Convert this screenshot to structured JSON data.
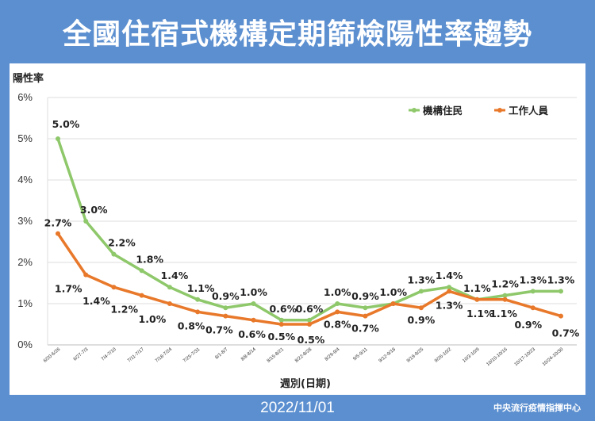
{
  "header": {
    "title": "全國住宿式機構定期篩檢陽性率趨勢"
  },
  "footer": {
    "date": "2022/11/01",
    "source": "中央流行疫情指揮中心"
  },
  "colors": {
    "background": "#5b8fd0",
    "series_residents": "#8ec86a",
    "series_staff": "#e8782a"
  },
  "chart_data": {
    "type": "line",
    "title": "",
    "ylabel": "陽性率",
    "xlabel": "週別(日期)",
    "ylim": [
      0,
      6
    ],
    "yticks": [
      "0%",
      "1%",
      "2%",
      "3%",
      "4%",
      "5%",
      "6%"
    ],
    "grid": true,
    "legend": "top-right",
    "categories": [
      "6/20-6/26",
      "6/27-7/3",
      "7/4-7/10",
      "7/11-7/17",
      "7/18-7/24",
      "7/25-7/31",
      "8/1-8/7",
      "8/8-8/14",
      "8/15-8/21",
      "8/22-8/28",
      "8/29-9/4",
      "9/5-9/11",
      "9/12-9/18",
      "9/19-9/25",
      "9/26-10/2",
      "10/3-10/9",
      "10/10-10/16",
      "10/17-10/23",
      "10/24-10/30"
    ],
    "series": [
      {
        "name": "機構住民",
        "values": [
          5.0,
          3.0,
          2.2,
          1.8,
          1.4,
          1.1,
          0.9,
          1.0,
          0.6,
          0.6,
          1.0,
          0.9,
          1.0,
          1.3,
          1.4,
          1.1,
          1.2,
          1.3,
          1.3
        ],
        "labels": [
          "5.0%",
          "3.0%",
          "2.2%",
          "1.8%",
          "1.4%",
          "1.1%",
          "0.9%",
          "1.0%",
          "0.6%",
          "0.6%",
          "1.0%",
          "0.9%",
          "1.0%",
          "1.3%",
          "1.4%",
          "1.1%",
          "1.2%",
          "1.3%",
          "1.3%"
        ]
      },
      {
        "name": "工作人員",
        "values": [
          2.7,
          1.7,
          1.4,
          1.2,
          1.0,
          0.8,
          0.7,
          0.6,
          0.5,
          0.5,
          0.8,
          0.7,
          1.0,
          0.9,
          1.3,
          1.1,
          1.1,
          0.9,
          0.7
        ],
        "labels": [
          "2.7%",
          "1.7%",
          "1.4%",
          "1.2%",
          "1.0%",
          "0.8%",
          "0.7%",
          "0.6%",
          "0.5%",
          "0.5%",
          "0.8%",
          "0.7%",
          "",
          "0.9%",
          "1.3%",
          "1.1%",
          "1.1%",
          "0.9%",
          "0.7%"
        ]
      }
    ]
  }
}
